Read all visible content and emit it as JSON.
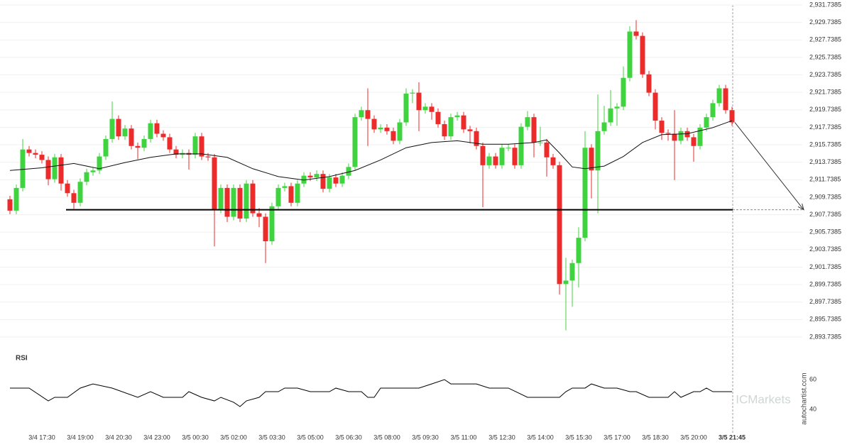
{
  "chart_data": [
    {
      "type": "candlestick",
      "categories": [
        null,
        null,
        null,
        null,
        null,
        "3/4 17:30",
        null,
        null,
        null,
        null,
        null,
        "3/4 19:00",
        null,
        null,
        null,
        null,
        null,
        "3/4 20:30",
        null,
        null,
        null,
        null,
        null,
        "3/4 23:00",
        null,
        null,
        null,
        null,
        null,
        "3/5 00:30",
        null,
        null,
        null,
        null,
        null,
        "3/5 02:00",
        null,
        null,
        null,
        null,
        null,
        "3/5 03:30",
        null,
        null,
        null,
        null,
        null,
        "3/5 05:00",
        null,
        null,
        null,
        null,
        null,
        "3/5 06:30",
        null,
        null,
        null,
        null,
        null,
        "3/5 08:00",
        null,
        null,
        null,
        null,
        null,
        "3/5 09:30",
        null,
        null,
        null,
        null,
        null,
        "3/5 11:00",
        null,
        null,
        null,
        null,
        null,
        "3/5 12:30",
        null,
        null,
        null,
        null,
        null,
        "3/5 14:00",
        null,
        null,
        null,
        null,
        null,
        "3/5 15:30",
        null,
        null,
        null,
        null,
        null,
        "3/5 17:00",
        null,
        null,
        null,
        null,
        null,
        "3/5 18:30",
        null,
        null,
        null,
        null,
        null,
        "3/5 20:00",
        null,
        null,
        null,
        null,
        null,
        "3/5 21:45"
      ],
      "open": [
        2909.5,
        2908.2,
        2910.8,
        2915.2,
        2914.8,
        2914.6,
        2914.0,
        2911.8,
        2914.3,
        2911.3,
        2910.2,
        2909.1,
        2911.5,
        2912.6,
        2912.8,
        2914.4,
        2916.4,
        2918.7,
        2916.7,
        2917.6,
        2915.6,
        2915.4,
        2916.4,
        2918.2,
        2917.0,
        2916.6,
        2915.2,
        2914.6,
        2914.8,
        2914.6,
        2916.7,
        2914.4,
        2914.3,
        2908.3,
        2910.8,
        2907.5,
        2910.8,
        2907.3,
        2911.3,
        2907.9,
        2907.5,
        2904.7,
        2908.7,
        2910.8,
        2911.0,
        2909.1,
        2911.3,
        2912.2,
        2912.0,
        2912.4,
        2910.7,
        2912.0,
        2911.3,
        2912.2,
        2913.2,
        2918.9,
        2919.7,
        2918.7,
        2917.5,
        2917.7,
        2917.3,
        2916.2,
        2918.3,
        2921.6,
        2921.7,
        2919.7,
        2920.1,
        2919.5,
        2918.1,
        2916.7,
        2918.9,
        2919.1,
        2917.5,
        2917.3,
        2915.6,
        2913.4,
        2914.4,
        2913.4,
        2915.4,
        2915.4,
        2913.4,
        2917.8,
        2918.9,
        2916.0,
        2916.0,
        2914.3,
        2913.4,
        2899.8,
        2900.2,
        2902.2,
        2905.1,
        2915.4,
        2912.8,
        2917.3,
        2918.3,
        2919.9,
        2920.1,
        2923.4,
        2928.7,
        2928.2,
        2923.8,
        2921.7,
        2918.5,
        2917.1,
        2917.0,
        2916.2,
        2917.3,
        2916.6,
        2915.6,
        2917.7,
        2918.9,
        2920.5,
        2922.2,
        2919.7
      ],
      "high": [
        2909.9,
        2911.2,
        2916.4,
        2915.6,
        2915.2,
        2915.0,
        2914.4,
        2914.7,
        2914.7,
        2911.7,
        2910.6,
        2911.9,
        2913.0,
        2913.2,
        2914.8,
        2916.8,
        2920.7,
        2919.1,
        2918.0,
        2918.0,
        2916.0,
        2916.8,
        2918.6,
        2918.6,
        2917.4,
        2917.0,
        2915.6,
        2915.2,
        2915.2,
        2917.1,
        2917.1,
        2914.8,
        2914.7,
        2911.2,
        2911.2,
        2911.2,
        2911.2,
        2911.7,
        2911.7,
        2908.5,
        2907.9,
        2909.1,
        2911.2,
        2911.4,
        2911.4,
        2911.7,
        2912.6,
        2912.6,
        2912.8,
        2912.8,
        2912.4,
        2912.4,
        2912.6,
        2913.6,
        2919.3,
        2920.1,
        2922.2,
        2919.1,
        2918.1,
        2918.1,
        2917.7,
        2918.7,
        2922.2,
        2922.1,
        2922.9,
        2920.5,
        2920.5,
        2919.9,
        2918.5,
        2919.3,
        2919.5,
        2919.5,
        2917.9,
        2917.7,
        2916.0,
        2914.8,
        2914.8,
        2915.8,
        2915.8,
        2915.8,
        2918.2,
        2919.6,
        2919.3,
        2917.8,
        2916.4,
        2914.7,
        2913.8,
        2902.8,
        2902.6,
        2906.3,
        2917.3,
        2915.8,
        2921.5,
        2920.2,
        2922.0,
        2920.5,
        2924.7,
        2929.3,
        2930.0,
        2928.6,
        2924.2,
        2922.1,
        2918.9,
        2917.5,
        2919.7,
        2917.7,
        2917.7,
        2917.0,
        2918.1,
        2919.3,
        2920.9,
        2922.6,
        2922.6,
        2920.1
      ],
      "low": [
        2907.8,
        2907.8,
        2910.4,
        2914.4,
        2914.2,
        2913.6,
        2911.1,
        2911.4,
        2910.5,
        2909.8,
        2908.4,
        2908.7,
        2911.1,
        2912.2,
        2912.4,
        2914.0,
        2916.0,
        2916.3,
        2916.3,
        2915.2,
        2914.1,
        2915.0,
        2916.0,
        2916.6,
        2916.2,
        2914.8,
        2914.2,
        2914.2,
        2912.9,
        2914.2,
        2914.0,
        2913.9,
        2904.1,
        2907.9,
        2906.9,
        2907.1,
        2906.9,
        2906.9,
        2907.5,
        2906.3,
        2902.2,
        2904.3,
        2908.3,
        2910.4,
        2908.7,
        2908.7,
        2910.9,
        2911.6,
        2911.6,
        2910.3,
        2910.3,
        2910.9,
        2910.9,
        2911.8,
        2912.8,
        2918.5,
        2915.6,
        2917.1,
        2917.1,
        2916.9,
        2915.8,
        2915.8,
        2917.9,
        2920.5,
        2917.3,
        2919.3,
        2918.6,
        2917.7,
        2916.3,
        2916.3,
        2918.5,
        2917.1,
        2915.9,
        2915.2,
        2908.6,
        2913.0,
        2913.0,
        2913.0,
        2915.0,
        2913.0,
        2913.0,
        2917.4,
        2914.3,
        2915.6,
        2912.1,
        2913.0,
        2898.6,
        2894.5,
        2897.2,
        2899.4,
        2904.7,
        2909.6,
        2907.9,
        2916.9,
        2917.9,
        2917.9,
        2919.7,
        2923.0,
        2927.8,
        2923.4,
        2921.3,
        2917.5,
        2916.3,
        2916.2,
        2911.7,
        2915.8,
        2916.2,
        2913.8,
        2915.2,
        2917.3,
        2918.5,
        2920.1,
        2919.3,
        2917.9
      ],
      "close": [
        2908.2,
        2910.8,
        2915.2,
        2914.8,
        2914.6,
        2914.0,
        2911.8,
        2914.3,
        2911.3,
        2910.2,
        2909.1,
        2911.5,
        2912.6,
        2912.8,
        2914.4,
        2916.4,
        2918.7,
        2916.7,
        2917.6,
        2915.6,
        2915.4,
        2916.4,
        2918.2,
        2917.0,
        2916.6,
        2915.2,
        2914.6,
        2914.8,
        2914.6,
        2916.7,
        2914.4,
        2914.3,
        2908.3,
        2910.8,
        2907.5,
        2910.8,
        2907.3,
        2911.3,
        2907.9,
        2907.5,
        2904.7,
        2908.7,
        2910.8,
        2911.0,
        2909.1,
        2911.3,
        2912.2,
        2912.0,
        2912.4,
        2910.7,
        2912.0,
        2911.3,
        2912.2,
        2913.2,
        2918.9,
        2919.7,
        2918.7,
        2917.5,
        2917.7,
        2917.3,
        2916.2,
        2918.3,
        2921.6,
        2921.7,
        2919.7,
        2920.1,
        2919.5,
        2918.1,
        2916.7,
        2918.9,
        2919.1,
        2917.5,
        2917.3,
        2915.6,
        2913.4,
        2914.4,
        2913.4,
        2915.4,
        2915.4,
        2913.4,
        2917.8,
        2918.9,
        2916.0,
        2916.0,
        2914.3,
        2913.4,
        2899.8,
        2900.2,
        2902.2,
        2905.1,
        2915.4,
        2912.8,
        2917.3,
        2918.3,
        2919.9,
        2920.1,
        2923.4,
        2928.7,
        2928.2,
        2923.8,
        2921.7,
        2918.5,
        2917.1,
        2917.0,
        2916.2,
        2917.3,
        2916.6,
        2915.6,
        2917.7,
        2918.9,
        2920.5,
        2922.2,
        2919.7,
        2918.3
      ],
      "up_color": "#3fd43f",
      "down_color": "#ec2b2b",
      "ylim": [
        2893.7385,
        2931.7385
      ],
      "yticks": [
        {
          "value": 2931.7385,
          "label": "2,931.7385"
        },
        {
          "value": 2929.7385,
          "label": "2,929.7385"
        },
        {
          "value": 2927.7385,
          "label": "2,927.7385"
        },
        {
          "value": 2925.7385,
          "label": "2,925.7385"
        },
        {
          "value": 2923.7385,
          "label": "2,923.7385"
        },
        {
          "value": 2921.7385,
          "label": "2,921.7385"
        },
        {
          "value": 2919.7385,
          "label": "2,919.7385"
        },
        {
          "value": 2917.7385,
          "label": "2,917.7385"
        },
        {
          "value": 2915.7385,
          "label": "2,915.7385"
        },
        {
          "value": 2913.7385,
          "label": "2,913.7385"
        },
        {
          "value": 2911.7385,
          "label": "2,911.7385"
        },
        {
          "value": 2909.7385,
          "label": "2,909.7385"
        },
        {
          "value": 2907.7385,
          "label": "2,907.7385"
        },
        {
          "value": 2905.7385,
          "label": "2,905.7385"
        },
        {
          "value": 2903.7385,
          "label": "2,903.7385"
        },
        {
          "value": 2901.7385,
          "label": "2,901.7385"
        },
        {
          "value": 2899.7385,
          "label": "2,899.7385"
        },
        {
          "value": 2897.7385,
          "label": "2,897.7385"
        },
        {
          "value": 2895.7385,
          "label": "2,895.7385"
        },
        {
          "value": 2893.7385,
          "label": "2,893.7385"
        }
      ],
      "grid": true,
      "moving_average": {
        "x": [
          0,
          5,
          10,
          14,
          18,
          22,
          26,
          30,
          34,
          38,
          42,
          46,
          50,
          54,
          58,
          62,
          66,
          70,
          74,
          78,
          82,
          84,
          86,
          88,
          90,
          93,
          96,
          99,
          102,
          106,
          110,
          113
        ],
        "values": [
          2912.8,
          2913.1,
          2913.6,
          2913.0,
          2913.7,
          2914.3,
          2914.7,
          2914.7,
          2914.3,
          2913.0,
          2912.1,
          2911.7,
          2912.1,
          2912.8,
          2914.0,
          2915.4,
          2916.0,
          2916.2,
          2915.8,
          2915.8,
          2916.0,
          2916.3,
          2914.8,
          2913.2,
          2913.0,
          2913.3,
          2914.4,
          2916.0,
          2916.9,
          2917.0,
          2917.7,
          2918.5
        ]
      },
      "level": 2908.3
    },
    {
      "type": "line",
      "title": "RSI",
      "x": [
        0,
        3,
        6,
        7,
        9,
        11,
        13,
        16,
        20,
        22,
        24,
        27,
        28,
        30,
        32,
        33,
        35,
        36,
        37,
        39,
        40,
        42,
        43,
        45,
        47,
        50,
        51,
        53,
        55,
        56,
        57,
        58,
        64,
        66,
        68,
        69,
        73,
        75,
        78,
        81,
        86,
        87,
        88,
        90,
        91,
        93,
        95,
        97,
        98,
        100,
        103,
        104,
        105,
        107,
        108,
        109,
        110,
        113
      ],
      "values": [
        54.3,
        54.3,
        45.7,
        48.1,
        48.1,
        54.3,
        57.1,
        54.3,
        48.1,
        51.9,
        48.1,
        48.1,
        51.9,
        48.1,
        45.7,
        48.1,
        44.8,
        41.9,
        45.7,
        48.1,
        51.9,
        51.9,
        54.3,
        54.3,
        51.9,
        51.9,
        54.3,
        51.9,
        51.9,
        48.1,
        48.1,
        54.3,
        54.3,
        57.1,
        60.0,
        57.1,
        57.1,
        54.3,
        54.3,
        48.1,
        48.1,
        51.9,
        54.3,
        54.3,
        57.1,
        54.3,
        54.3,
        51.9,
        51.9,
        48.1,
        48.1,
        51.9,
        48.1,
        51.9,
        51.9,
        54.3,
        51.9,
        51.9
      ],
      "color": "#000000",
      "ylim": [
        30,
        70
      ],
      "yticks": [
        60,
        40
      ]
    }
  ],
  "watermark": "autochartist.com",
  "brand": "ICMarkets"
}
